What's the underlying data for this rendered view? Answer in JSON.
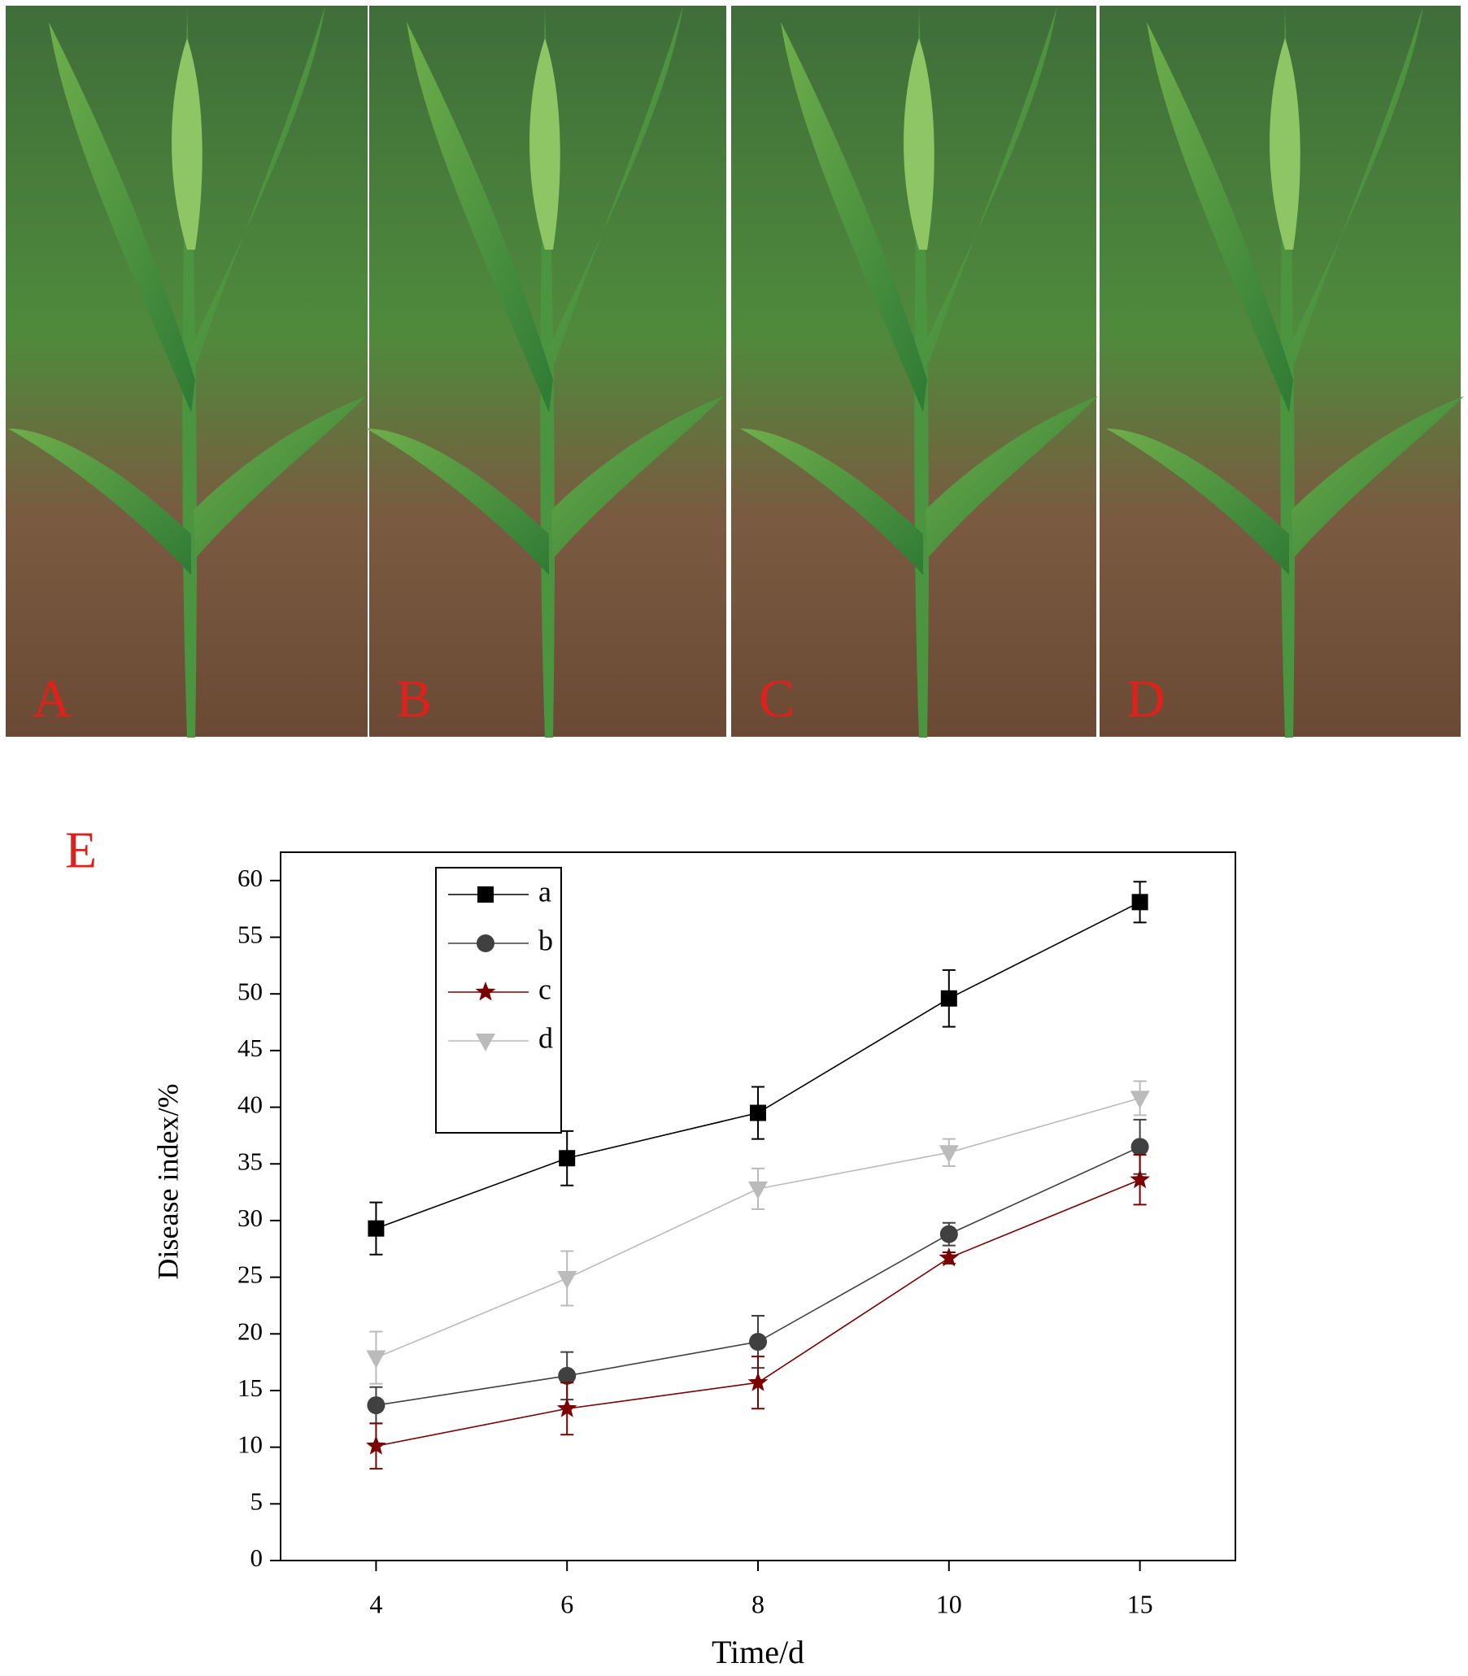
{
  "panels": [
    "A",
    "B",
    "C",
    "D"
  ],
  "chart_data": {
    "type": "line",
    "title": "E",
    "x_label": "Time/d",
    "y_label": "Disease index/%",
    "categories": [
      "4",
      "6",
      "8",
      "10",
      "15"
    ],
    "ylim": [
      0,
      62.5
    ],
    "yticks": [
      0,
      5,
      10,
      15,
      20,
      25,
      30,
      35,
      40,
      45,
      50,
      55,
      60
    ],
    "legend": "upper left",
    "series": [
      {
        "name": "a",
        "color": "#000000",
        "marker": "square",
        "values": [
          29.3,
          35.5,
          39.5,
          49.6,
          58.1
        ],
        "errors": [
          2.3,
          2.4,
          2.3,
          2.5,
          1.8
        ]
      },
      {
        "name": "b",
        "color": "#404040",
        "marker": "circle",
        "values": [
          13.7,
          16.3,
          19.3,
          28.8,
          36.5
        ],
        "errors": [
          1.6,
          2.1,
          2.3,
          1.0,
          2.4
        ]
      },
      {
        "name": "c",
        "color": "#7b0000",
        "marker": "star",
        "values": [
          10.1,
          13.4,
          15.7,
          26.7,
          33.6
        ],
        "errors": [
          2.0,
          2.3,
          2.3,
          0.5,
          2.2
        ]
      },
      {
        "name": "d",
        "color": "#bbbbbb",
        "marker": "triangle-down",
        "values": [
          17.9,
          24.9,
          32.8,
          36.0,
          40.8
        ],
        "errors": [
          2.3,
          2.4,
          1.8,
          1.2,
          1.5
        ]
      }
    ]
  }
}
